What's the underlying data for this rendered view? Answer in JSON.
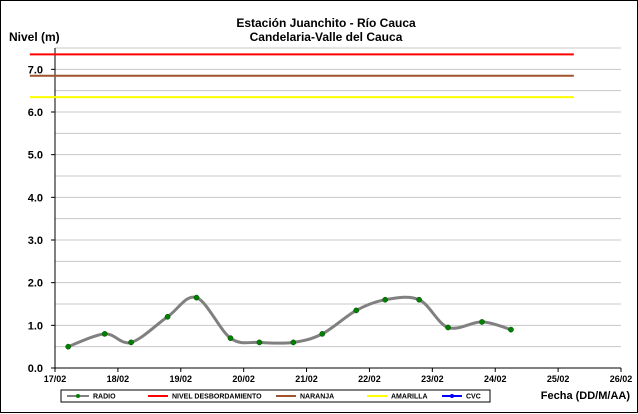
{
  "chart_data": {
    "type": "line",
    "title": "Estación Juanchito - Río Cauca",
    "subtitle": "Candelaria-Valle del Cauca",
    "ylabel": "Nivel (m)",
    "xlabel": "Fecha (DD/M/AA)",
    "ylim": [
      0,
      7.5
    ],
    "yticks": [
      "0.0",
      "1.0",
      "2.0",
      "3.0",
      "4.0",
      "5.0",
      "6.0",
      "7.0"
    ],
    "ytick_values": [
      0,
      1,
      2,
      3,
      4,
      5,
      6,
      7
    ],
    "xticks": [
      "17/02",
      "18/02",
      "19/02",
      "20/02",
      "21/02",
      "22/02",
      "23/02",
      "24/02",
      "25/02",
      "26/02"
    ],
    "xlim": [
      0,
      9
    ],
    "grid": true,
    "legend_position": "bottom",
    "series": [
      {
        "name": "RADIO",
        "color": "#808080",
        "marker_color": "#008000",
        "x": [
          0.21,
          0.79,
          1.21,
          1.79,
          2.25,
          2.79,
          3.25,
          3.79,
          4.25,
          4.79,
          5.25,
          5.79,
          6.25,
          6.79,
          7.25
        ],
        "values": [
          0.5,
          0.8,
          0.6,
          1.2,
          1.65,
          0.7,
          0.6,
          0.6,
          0.8,
          1.35,
          1.6,
          1.6,
          0.95,
          1.08,
          0.9
        ]
      },
      {
        "name": "NIVEL DESBORDAMIENTO",
        "color": "#ff0000",
        "x": [
          -0.4,
          8.25
        ],
        "values": [
          7.35,
          7.35
        ]
      },
      {
        "name": "NARANJA",
        "color": "#a0522d",
        "x": [
          -0.4,
          8.25
        ],
        "values": [
          6.85,
          6.85
        ]
      },
      {
        "name": "AMARILLA",
        "color": "#ffff00",
        "x": [
          -0.4,
          8.25
        ],
        "values": [
          6.35,
          6.35
        ]
      },
      {
        "name": "CVC",
        "color": "#0000ff",
        "x": [],
        "values": []
      }
    ]
  }
}
